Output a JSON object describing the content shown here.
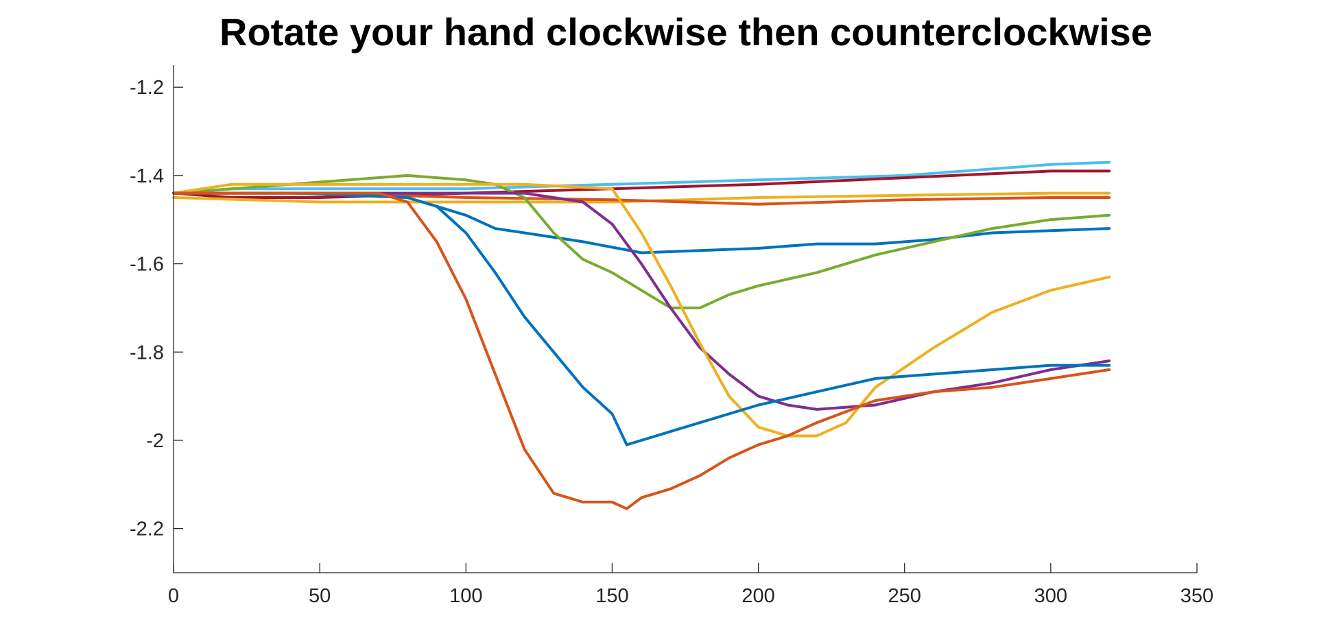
{
  "chart_data": {
    "type": "line",
    "title": "Rotate your hand clockwise then counterclockwise",
    "xlabel": "",
    "ylabel": "",
    "xlim": [
      0,
      350
    ],
    "ylim": [
      -2.3,
      -1.15
    ],
    "xticks": [
      0,
      50,
      100,
      150,
      200,
      250,
      300,
      350
    ],
    "xtick_labels": [
      "0",
      "50",
      "100",
      "150",
      "200",
      "250",
      "300",
      "350"
    ],
    "yticks": [
      -1.2,
      -1.4,
      -1.6,
      -1.8,
      -2,
      -2.2
    ],
    "ytick_labels": [
      "-1.2",
      "-1.4",
      "-1.6",
      "-1.8",
      "-2",
      "-2.2"
    ],
    "grid": false,
    "legend": "none",
    "series": [
      {
        "color": "#4DBEEE",
        "x": [
          0,
          20,
          50,
          100,
          150,
          200,
          250,
          300,
          320
        ],
        "y": [
          -1.44,
          -1.43,
          -1.43,
          -1.43,
          -1.42,
          -1.41,
          -1.4,
          -1.375,
          -1.37
        ]
      },
      {
        "color": "#A2142F",
        "x": [
          0,
          20,
          50,
          100,
          150,
          200,
          250,
          300,
          320
        ],
        "y": [
          -1.44,
          -1.45,
          -1.45,
          -1.44,
          -1.43,
          -1.42,
          -1.405,
          -1.39,
          -1.39
        ]
      },
      {
        "color": "#EDB120",
        "x": [
          0,
          50,
          100,
          150,
          200,
          250,
          300,
          320
        ],
        "y": [
          -1.45,
          -1.46,
          -1.46,
          -1.46,
          -1.45,
          -1.445,
          -1.44,
          -1.44
        ]
      },
      {
        "color": "#D95319",
        "x": [
          0,
          50,
          100,
          150,
          200,
          250,
          300,
          320
        ],
        "y": [
          -1.44,
          -1.44,
          -1.45,
          -1.455,
          -1.465,
          -1.455,
          -1.45,
          -1.45
        ]
      },
      {
        "color": "#0072BD",
        "x": [
          0,
          20,
          50,
          80,
          100,
          110,
          120,
          140,
          160,
          180,
          200,
          220,
          240,
          260,
          280,
          300,
          320
        ],
        "y": [
          -1.44,
          -1.44,
          -1.44,
          -1.45,
          -1.49,
          -1.52,
          -1.53,
          -1.55,
          -1.575,
          -1.57,
          -1.565,
          -1.555,
          -1.555,
          -1.545,
          -1.53,
          -1.525,
          -1.52
        ]
      },
      {
        "color": "#77AC30",
        "x": [
          0,
          20,
          40,
          60,
          80,
          100,
          110,
          120,
          130,
          140,
          150,
          160,
          170,
          180,
          190,
          200,
          220,
          240,
          260,
          280,
          300,
          320
        ],
        "y": [
          -1.44,
          -1.43,
          -1.42,
          -1.41,
          -1.4,
          -1.41,
          -1.42,
          -1.45,
          -1.53,
          -1.59,
          -1.62,
          -1.66,
          -1.7,
          -1.7,
          -1.67,
          -1.65,
          -1.62,
          -1.58,
          -1.55,
          -1.52,
          -1.5,
          -1.49
        ]
      },
      {
        "color": "#7E2F8E",
        "x": [
          0,
          40,
          80,
          120,
          140,
          150,
          160,
          170,
          180,
          190,
          200,
          210,
          220,
          240,
          260,
          280,
          300,
          320
        ],
        "y": [
          -1.44,
          -1.44,
          -1.44,
          -1.44,
          -1.46,
          -1.51,
          -1.6,
          -1.7,
          -1.79,
          -1.85,
          -1.9,
          -1.92,
          -1.93,
          -1.92,
          -1.89,
          -1.87,
          -1.84,
          -1.82
        ]
      },
      {
        "color": "#EDB120",
        "x": [
          0,
          20,
          40,
          80,
          120,
          150,
          160,
          170,
          180,
          190,
          200,
          210,
          220,
          230,
          240,
          260,
          280,
          300,
          320
        ],
        "y": [
          -1.44,
          -1.42,
          -1.42,
          -1.42,
          -1.42,
          -1.43,
          -1.53,
          -1.65,
          -1.78,
          -1.9,
          -1.97,
          -1.99,
          -1.99,
          -1.96,
          -1.88,
          -1.79,
          -1.71,
          -1.66,
          -1.63
        ]
      },
      {
        "color": "#0072BD",
        "x": [
          0,
          40,
          80,
          90,
          100,
          110,
          120,
          130,
          140,
          150,
          155,
          160,
          170,
          180,
          200,
          220,
          240,
          260,
          280,
          300,
          320
        ],
        "y": [
          -1.44,
          -1.44,
          -1.45,
          -1.47,
          -1.53,
          -1.62,
          -1.72,
          -1.8,
          -1.88,
          -1.94,
          -2.01,
          -2.0,
          -1.98,
          -1.96,
          -1.92,
          -1.89,
          -1.86,
          -1.85,
          -1.84,
          -1.83,
          -1.83
        ]
      },
      {
        "color": "#D95319",
        "x": [
          0,
          40,
          70,
          80,
          90,
          100,
          110,
          120,
          130,
          140,
          150,
          155,
          160,
          170,
          180,
          190,
          200,
          210,
          220,
          240,
          260,
          280,
          300,
          320
        ],
        "y": [
          -1.44,
          -1.44,
          -1.44,
          -1.46,
          -1.55,
          -1.68,
          -1.85,
          -2.02,
          -2.12,
          -2.14,
          -2.14,
          -2.155,
          -2.13,
          -2.11,
          -2.08,
          -2.04,
          -2.01,
          -1.99,
          -1.96,
          -1.91,
          -1.89,
          -1.88,
          -1.86,
          -1.84
        ]
      }
    ]
  }
}
